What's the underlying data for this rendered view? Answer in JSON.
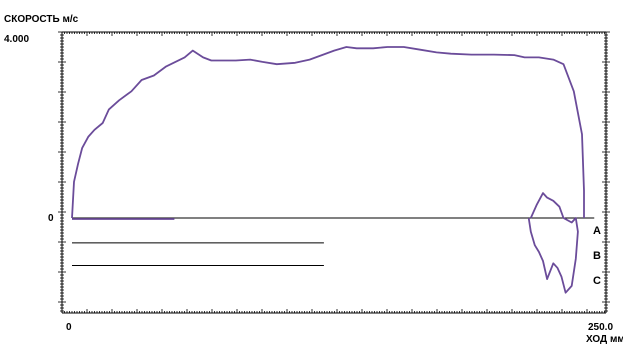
{
  "chart_data": {
    "type": "line",
    "ylabel": "СКОРОСТЬ м/с",
    "xlabel": "ХОД мм",
    "xlim": [
      0,
      250.0
    ],
    "ylim": [
      -2.0,
      4.0
    ],
    "x_tick_labels": [
      "0",
      "250.0"
    ],
    "y_tick_labels": [
      "4.000",
      "0"
    ],
    "colors": {
      "curve": "#6b4c9a",
      "axis": "#000000",
      "reference_lines": "#000000"
    },
    "series": [
      {
        "values": [
          [
            0,
            0.0
          ],
          [
            1,
            0.8
          ],
          [
            3,
            1.2
          ],
          [
            5,
            1.55
          ],
          [
            8,
            1.8
          ],
          [
            11,
            1.95
          ],
          [
            15,
            2.1
          ],
          [
            18,
            2.4
          ],
          [
            23,
            2.6
          ],
          [
            29,
            2.8
          ],
          [
            34,
            3.05
          ],
          [
            40,
            3.15
          ],
          [
            46,
            3.35
          ],
          [
            55,
            3.55
          ],
          [
            59,
            3.7
          ],
          [
            64,
            3.55
          ],
          [
            68,
            3.48
          ],
          [
            75,
            3.48
          ],
          [
            80,
            3.48
          ],
          [
            87,
            3.5
          ],
          [
            93,
            3.45
          ],
          [
            100,
            3.4
          ],
          [
            109,
            3.43
          ],
          [
            116,
            3.5
          ],
          [
            122,
            3.6
          ],
          [
            128,
            3.7
          ],
          [
            134,
            3.78
          ],
          [
            139,
            3.75
          ],
          [
            147,
            3.75
          ],
          [
            154,
            3.78
          ],
          [
            162,
            3.78
          ],
          [
            170,
            3.72
          ],
          [
            178,
            3.66
          ],
          [
            185,
            3.63
          ],
          [
            195,
            3.61
          ],
          [
            206,
            3.61
          ],
          [
            216,
            3.6
          ],
          [
            221,
            3.55
          ],
          [
            228,
            3.55
          ],
          [
            235,
            3.5
          ],
          [
            240,
            3.4
          ],
          [
            245,
            2.8
          ],
          [
            249,
            1.85
          ],
          [
            250,
            0.6
          ],
          [
            250,
            0.0
          ]
        ]
      },
      {
        "values": [
          [
            224,
            0.0
          ],
          [
            227,
            0.3
          ],
          [
            230,
            0.55
          ],
          [
            232,
            0.45
          ],
          [
            235,
            0.38
          ],
          [
            238,
            0.25
          ],
          [
            240,
            0.0
          ],
          [
            244,
            -0.1
          ],
          [
            246,
            0.0
          ],
          [
            247,
            -0.3
          ],
          [
            246,
            -0.9
          ],
          [
            244,
            -1.5
          ],
          [
            241,
            -1.65
          ],
          [
            239,
            -1.3
          ],
          [
            237,
            -1.1
          ],
          [
            235,
            -1.0
          ],
          [
            232,
            -1.35
          ],
          [
            230,
            -0.95
          ],
          [
            228,
            -0.75
          ],
          [
            226,
            -0.6
          ],
          [
            224,
            -0.3
          ],
          [
            223,
            0.0
          ]
        ]
      }
    ],
    "zero_line": {
      "x": [
        0,
        255
      ],
      "y": 0.0
    },
    "reference_lines": [
      {
        "label": "A",
        "y": 0.0,
        "x": [
          0,
          50
        ]
      },
      {
        "label": "B",
        "y": -0.55,
        "x": [
          0,
          123
        ]
      },
      {
        "label": "C",
        "y": -1.05,
        "x": [
          0,
          123
        ]
      }
    ]
  }
}
